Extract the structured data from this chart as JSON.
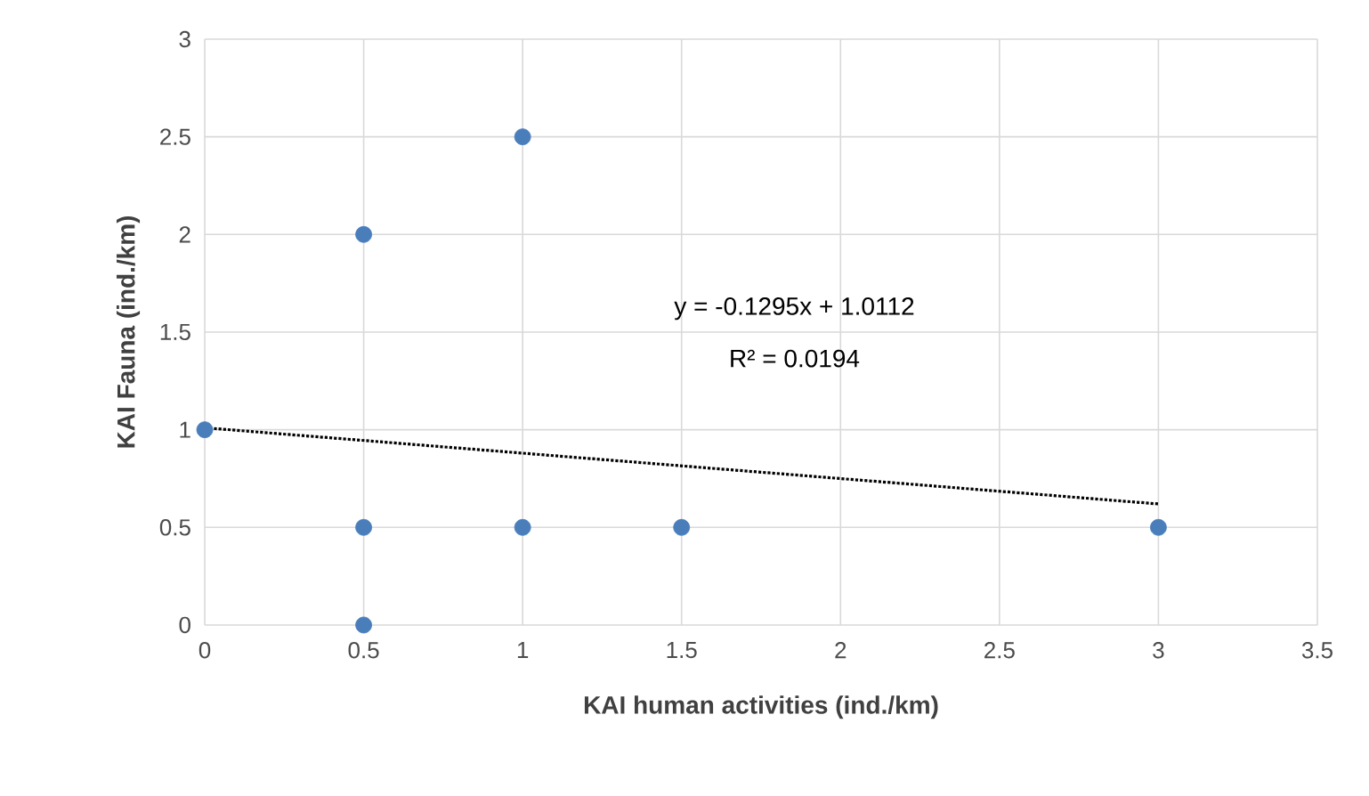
{
  "chart_data": {
    "type": "scatter",
    "xlabel": "KAI human activities (ind./km)",
    "ylabel": "KAI Fauna (ind./km)",
    "xlim": [
      0,
      3.5
    ],
    "ylim": [
      0,
      3
    ],
    "xticks": [
      0,
      0.5,
      1,
      1.5,
      2,
      2.5,
      3,
      3.5
    ],
    "yticks": [
      0,
      0.5,
      1,
      1.5,
      2,
      2.5,
      3
    ],
    "grid": true,
    "series": [
      {
        "color": "#4a7ebb",
        "marker": "circle",
        "x": [
          0,
          0.5,
          0.5,
          0.5,
          1,
          1,
          1.5,
          3
        ],
        "values": [
          1,
          2,
          0.5,
          0,
          2.5,
          0.5,
          0.5,
          0.5
        ]
      },
      {
        "type": "line",
        "line_style": "dotted",
        "color": "#000000",
        "marker": "none",
        "x": [
          0,
          3
        ],
        "values": [
          1.01,
          0.62
        ]
      }
    ],
    "annotations": [
      "y = -0.1295x + 1.0112",
      "R² = 0.0194"
    ]
  }
}
